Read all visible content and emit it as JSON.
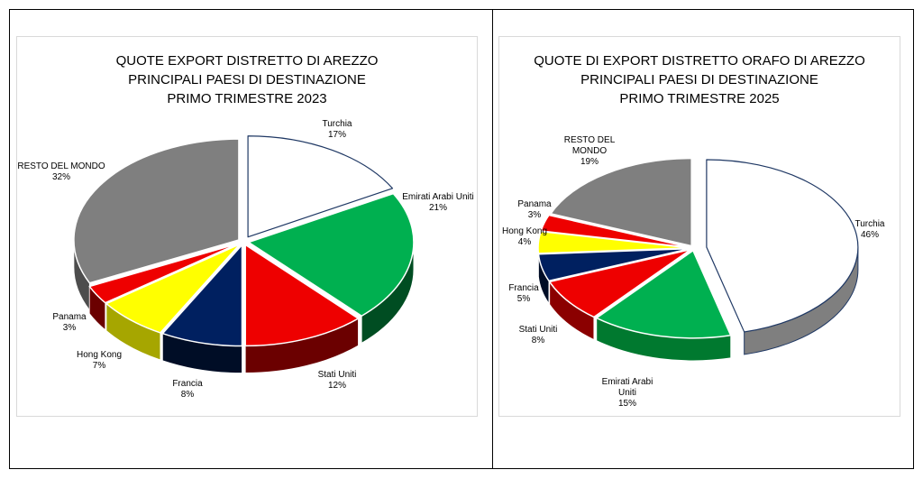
{
  "chart_data": [
    {
      "type": "pie",
      "title_lines": [
        "QUOTE EXPORT DISTRETTO DI AREZZO",
        "PRINCIPALI PAESI DI DESTINAZIONE",
        "PRIMO TRIMESTRE 2023"
      ],
      "slices": [
        {
          "label": "Turchia",
          "value": 17,
          "pct": "17%",
          "color": "#ffffff",
          "side": "#d9d9d9",
          "exploded": true
        },
        {
          "label": "Emirati Arabi Uniti",
          "value": 21,
          "pct": "21%",
          "color": "#00b050",
          "side": "#004d22"
        },
        {
          "label": "Stati Uniti",
          "value": 12,
          "pct": "12%",
          "color": "#ee0000",
          "side": "#6b0000"
        },
        {
          "label": "Francia",
          "value": 8,
          "pct": "8%",
          "color": "#002060",
          "side": "#000d26"
        },
        {
          "label": "Hong Kong",
          "value": 7,
          "pct": "7%",
          "color": "#ffff00",
          "side": "#a6a600"
        },
        {
          "label": "Panama",
          "value": 3,
          "pct": "3%",
          "color": "#ee0000",
          "side": "#6b0000"
        },
        {
          "label": "RESTO DEL MONDO",
          "value": 32,
          "pct": "32%",
          "color": "#7f7f7f",
          "side": "#4d4d4d"
        }
      ]
    },
    {
      "type": "pie",
      "title_lines": [
        "QUOTE DI EXPORT DISTRETTO ORAFO DI AREZZO",
        "PRINCIPALI PAESI DI DESTINAZIONE",
        "PRIMO TRIMESTRE 2025"
      ],
      "slices": [
        {
          "label": "Turchia",
          "value": 46,
          "pct": "46%",
          "color": "#ffffff",
          "side": "#7f7f7f",
          "exploded": true
        },
        {
          "label": "Emirati Arabi Uniti",
          "value": 15,
          "pct": "15%",
          "color": "#00b050",
          "side": "#00792f"
        },
        {
          "label": "Stati Uniti",
          "value": 8,
          "pct": "8%",
          "color": "#ee0000",
          "side": "#8b0000"
        },
        {
          "label": "Francia",
          "value": 5,
          "pct": "5%",
          "color": "#002060",
          "side": "#000d26"
        },
        {
          "label": "Hong Kong",
          "value": 4,
          "pct": "4%",
          "color": "#ffff00",
          "side": "#a6a600"
        },
        {
          "label": "Panama",
          "value": 3,
          "pct": "3%",
          "color": "#ee0000",
          "side": "#6b0000"
        },
        {
          "label": "RESTO DEL MONDO",
          "value": 19,
          "pct": "19%",
          "color": "#7f7f7f",
          "side": "#4d4d4d"
        }
      ]
    }
  ]
}
